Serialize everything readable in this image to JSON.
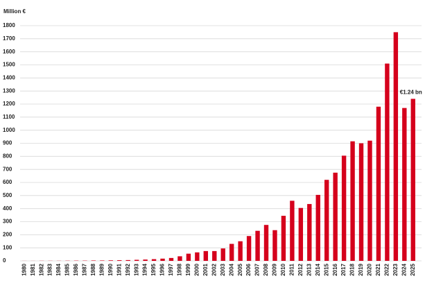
{
  "chart_data": {
    "type": "bar",
    "y_label": "Million €",
    "categories": [
      "1980",
      "1981",
      "1982",
      "1983",
      "1984",
      "1985",
      "1986",
      "1987",
      "1988",
      "1989",
      "1990",
      "1991",
      "1992",
      "1993",
      "1994",
      "1995",
      "1996",
      "1997",
      "1998",
      "1999",
      "2000",
      "2001",
      "2002",
      "2003",
      "2004",
      "2005",
      "2006",
      "2007",
      "2008",
      "2009",
      "2010",
      "2011",
      "2012",
      "2013",
      "2014",
      "2015",
      "2016",
      "2017",
      "2018",
      "2019",
      "2020",
      "2021",
      "2022",
      "2023",
      "2024",
      "2025"
    ],
    "values": [
      0.5,
      0.5,
      1,
      1,
      1,
      1.5,
      2,
      2,
      3,
      3,
      4,
      5,
      6,
      8,
      10,
      13,
      17,
      22,
      35,
      55,
      65,
      75,
      75,
      95,
      130,
      150,
      190,
      230,
      275,
      235,
      345,
      460,
      405,
      435,
      505,
      620,
      675,
      805,
      915,
      900,
      920,
      1180,
      1510,
      1750,
      1170,
      1240
    ],
    "value_labels": [
      null,
      null,
      null,
      null,
      null,
      null,
      null,
      null,
      null,
      null,
      null,
      null,
      null,
      null,
      null,
      null,
      null,
      null,
      null,
      null,
      null,
      null,
      null,
      null,
      null,
      null,
      null,
      null,
      null,
      null,
      null,
      null,
      null,
      null,
      null,
      null,
      null,
      null,
      null,
      null,
      null,
      null,
      null,
      null,
      null,
      "€1.24 bn"
    ],
    "color": "#d5001c",
    "ylim": [
      0,
      1800
    ],
    "yticks": [
      0,
      100,
      200,
      300,
      400,
      500,
      600,
      700,
      800,
      900,
      1000,
      1100,
      1200,
      1300,
      1400,
      1500,
      1600,
      1700,
      1800
    ],
    "grid": true
  }
}
